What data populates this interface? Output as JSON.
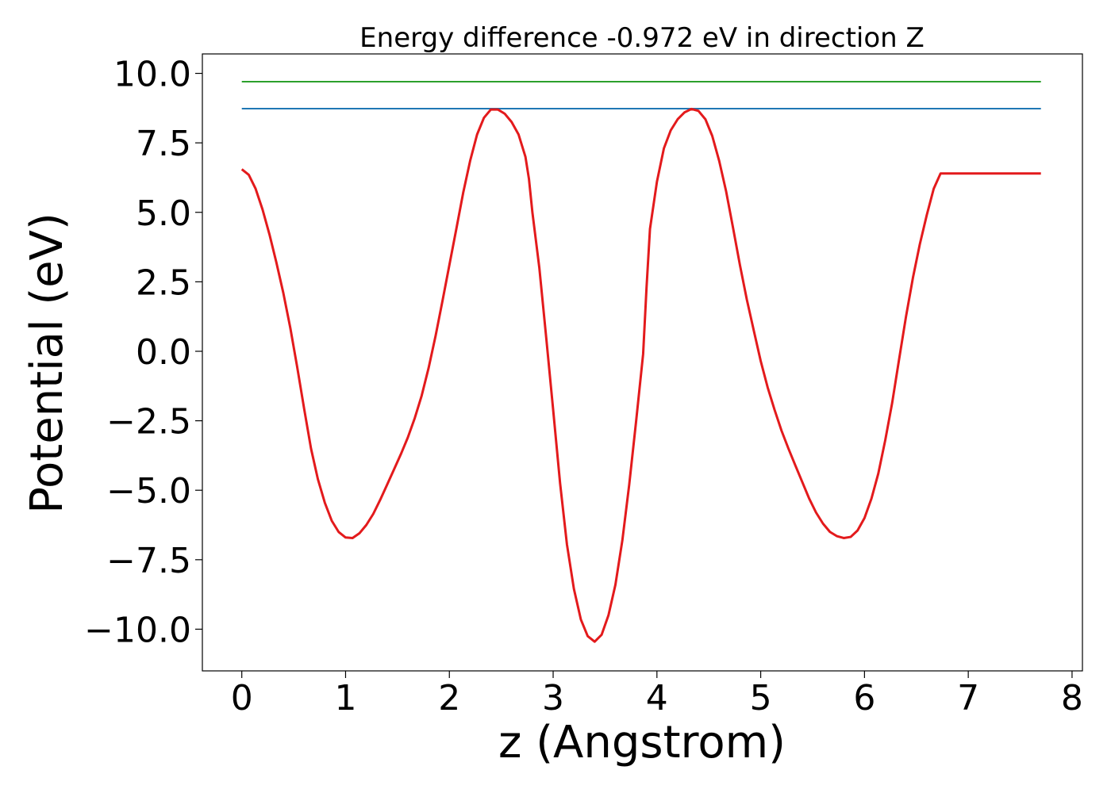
{
  "chart_data": {
    "type": "line",
    "title": "Energy difference -0.972 eV in direction Z",
    "xlabel": "z (Angstrom)",
    "ylabel": "Potential (eV)",
    "xlim": [
      -0.38,
      8.1
    ],
    "ylim": [
      -11.5,
      10.7
    ],
    "xticks": [
      0,
      1,
      2,
      3,
      4,
      5,
      6,
      7,
      8
    ],
    "xtick_labels": [
      "0",
      "1",
      "2",
      "3",
      "4",
      "5",
      "6",
      "7",
      "8"
    ],
    "yticks": [
      10.0,
      7.5,
      5.0,
      2.5,
      0.0,
      -2.5,
      -5.0,
      -7.5,
      -10.0
    ],
    "ytick_labels": [
      "10.0",
      "7.5",
      "5.0",
      "2.5",
      "0.0",
      "−2.5",
      "−5.0",
      "−7.5",
      "−10.0"
    ],
    "grid": false,
    "legend": "none",
    "series": [
      {
        "color": "#2ca02c",
        "x": [
          0.0,
          7.7
        ],
        "y": [
          9.7,
          9.7
        ]
      },
      {
        "color": "#1f77b4",
        "x": [
          0.0,
          7.7
        ],
        "y": [
          8.73,
          8.73
        ]
      },
      {
        "color": "#e31a1c",
        "x": [
          0.0,
          0.067,
          0.133,
          0.2,
          0.267,
          0.333,
          0.4,
          0.467,
          0.533,
          0.6,
          0.667,
          0.733,
          0.8,
          0.867,
          0.933,
          1.0,
          1.067,
          1.133,
          1.2,
          1.267,
          1.333,
          1.4,
          1.467,
          1.533,
          1.6,
          1.667,
          1.733,
          1.8,
          1.867,
          1.933,
          2.0,
          2.067,
          2.133,
          2.2,
          2.267,
          2.333,
          2.4,
          2.467,
          2.533,
          2.6,
          2.667,
          2.733,
          2.767,
          2.8,
          2.867,
          2.933,
          3.0,
          3.067,
          3.133,
          3.2,
          3.267,
          3.333,
          3.4,
          3.467,
          3.533,
          3.6,
          3.667,
          3.733,
          3.8,
          3.867,
          3.9,
          3.933,
          4.0,
          4.067,
          4.133,
          4.2,
          4.267,
          4.333,
          4.4,
          4.467,
          4.533,
          4.6,
          4.667,
          4.733,
          4.8,
          4.867,
          4.933,
          5.0,
          5.067,
          5.133,
          5.2,
          5.267,
          5.333,
          5.4,
          5.467,
          5.533,
          5.6,
          5.667,
          5.733,
          5.8,
          5.867,
          5.933,
          6.0,
          6.067,
          6.133,
          6.2,
          6.267,
          6.333,
          6.4,
          6.467,
          6.533,
          6.6,
          6.667,
          6.733,
          6.8,
          6.867,
          6.933,
          7.0,
          7.067,
          7.133,
          7.2,
          7.267,
          7.333,
          7.4,
          7.467,
          7.533,
          7.6,
          7.667,
          7.7
        ],
        "y": [
          6.55,
          6.35,
          5.85,
          5.1,
          4.2,
          3.2,
          2.1,
          0.85,
          -0.55,
          -2.05,
          -3.5,
          -4.6,
          -5.45,
          -6.1,
          -6.5,
          -6.7,
          -6.72,
          -6.55,
          -6.25,
          -5.85,
          -5.35,
          -4.8,
          -4.25,
          -3.7,
          -3.1,
          -2.4,
          -1.6,
          -0.6,
          0.55,
          1.8,
          3.1,
          4.4,
          5.7,
          6.85,
          7.8,
          8.4,
          8.7,
          8.7,
          8.55,
          8.25,
          7.8,
          7.0,
          6.2,
          5.0,
          3.0,
          0.5,
          -2.1,
          -4.75,
          -6.95,
          -8.55,
          -9.65,
          -10.25,
          -10.45,
          -10.2,
          -9.5,
          -8.4,
          -6.8,
          -4.8,
          -2.5,
          -0.1,
          2.3,
          4.4,
          6.1,
          7.3,
          7.95,
          8.35,
          8.6,
          8.72,
          8.65,
          8.35,
          7.75,
          6.85,
          5.75,
          4.45,
          3.1,
          1.85,
          0.75,
          -0.35,
          -1.3,
          -2.1,
          -2.85,
          -3.5,
          -4.1,
          -4.7,
          -5.3,
          -5.8,
          -6.2,
          -6.5,
          -6.65,
          -6.72,
          -6.68,
          -6.45,
          -6.0,
          -5.3,
          -4.4,
          -3.2,
          -1.85,
          -0.3,
          1.25,
          2.65,
          3.85,
          4.9,
          5.85,
          6.4,
          6.4,
          6.4,
          6.4,
          6.4,
          6.4,
          6.4,
          6.4,
          6.4,
          6.4,
          6.4,
          6.4,
          6.4,
          6.4,
          6.4,
          6.4
        ]
      }
    ]
  }
}
